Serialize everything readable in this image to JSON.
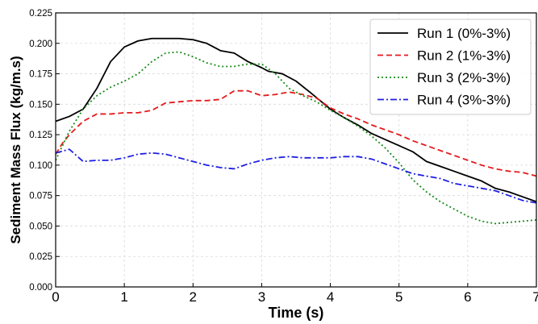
{
  "chart_data": {
    "type": "line",
    "title": "",
    "xlabel": "Time (s)",
    "ylabel": "Sediment Mass Flux (kg/m.s)",
    "xlim": [
      0,
      7
    ],
    "ylim": [
      0,
      0.225
    ],
    "xticks": [
      0,
      1,
      2,
      3,
      4,
      5,
      6,
      7
    ],
    "yticks": [
      0,
      0.025,
      0.05,
      0.075,
      0.1,
      0.125,
      0.15,
      0.175,
      0.2,
      0.225
    ],
    "xtick_labels": [
      "0",
      "1",
      "2",
      "3",
      "4",
      "5",
      "6",
      "7"
    ],
    "ytick_labels": [
      "0.000",
      "0.025",
      "0.050",
      "0.075",
      "0.100",
      "0.125",
      "0.150",
      "0.175",
      "0.200",
      "0.225"
    ],
    "grid": true,
    "legend_position": "top-right",
    "series": [
      {
        "name": "Run 1 (0%-3%)",
        "color": "#000000",
        "dash": "solid",
        "x": [
          0,
          0.2,
          0.4,
          0.6,
          0.8,
          1.0,
          1.2,
          1.4,
          1.6,
          1.8,
          2.0,
          2.2,
          2.4,
          2.6,
          2.8,
          3.0,
          3.1,
          3.2,
          3.3,
          3.5,
          3.7,
          4.0,
          4.2,
          4.4,
          4.6,
          4.8,
          5.0,
          5.2,
          5.4,
          5.6,
          5.8,
          6.0,
          6.2,
          6.4,
          6.6,
          6.8,
          7.0
        ],
        "y": [
          0.136,
          0.14,
          0.146,
          0.163,
          0.185,
          0.197,
          0.202,
          0.204,
          0.204,
          0.204,
          0.203,
          0.2,
          0.194,
          0.192,
          0.185,
          0.18,
          0.177,
          0.176,
          0.175,
          0.169,
          0.16,
          0.146,
          0.139,
          0.133,
          0.126,
          0.121,
          0.116,
          0.111,
          0.103,
          0.099,
          0.095,
          0.091,
          0.087,
          0.081,
          0.078,
          0.074,
          0.07
        ]
      },
      {
        "name": "Run 2 (1%-3%)",
        "color": "#e41a1c",
        "dash": "dashed",
        "x": [
          0,
          0.1,
          0.2,
          0.4,
          0.6,
          0.8,
          1.0,
          1.2,
          1.4,
          1.6,
          1.8,
          2.0,
          2.2,
          2.4,
          2.6,
          2.8,
          3.0,
          3.2,
          3.4,
          3.6,
          3.8,
          4.0,
          4.2,
          4.4,
          4.6,
          4.8,
          5.0,
          5.2,
          5.4,
          5.6,
          5.8,
          6.0,
          6.2,
          6.4,
          6.6,
          6.8,
          7.0
        ],
        "y": [
          0.109,
          0.118,
          0.125,
          0.136,
          0.142,
          0.142,
          0.143,
          0.143,
          0.145,
          0.151,
          0.152,
          0.153,
          0.153,
          0.154,
          0.161,
          0.161,
          0.157,
          0.158,
          0.16,
          0.158,
          0.155,
          0.147,
          0.142,
          0.138,
          0.133,
          0.129,
          0.125,
          0.12,
          0.116,
          0.112,
          0.108,
          0.104,
          0.1,
          0.097,
          0.095,
          0.094,
          0.091
        ]
      },
      {
        "name": "Run 3 (2%-3%)",
        "color": "#1a8a1a",
        "dash": "dotted",
        "x": [
          0,
          0.2,
          0.4,
          0.6,
          0.8,
          1.0,
          1.2,
          1.4,
          1.6,
          1.8,
          2.0,
          2.2,
          2.4,
          2.6,
          2.8,
          3.0,
          3.2,
          3.4,
          3.6,
          3.8,
          4.0,
          4.2,
          4.4,
          4.6,
          4.8,
          5.0,
          5.2,
          5.4,
          5.6,
          5.8,
          6.0,
          6.2,
          6.4,
          6.6,
          6.8,
          7.0
        ],
        "y": [
          0.104,
          0.128,
          0.146,
          0.157,
          0.164,
          0.169,
          0.175,
          0.185,
          0.192,
          0.193,
          0.189,
          0.184,
          0.181,
          0.181,
          0.183,
          0.183,
          0.175,
          0.163,
          0.157,
          0.152,
          0.145,
          0.139,
          0.132,
          0.124,
          0.114,
          0.102,
          0.088,
          0.078,
          0.07,
          0.064,
          0.058,
          0.054,
          0.052,
          0.053,
          0.054,
          0.055
        ]
      },
      {
        "name": "Run 4 (3%-3%)",
        "color": "#1f1fe0",
        "dash": "dashdot",
        "x": [
          0,
          0.2,
          0.4,
          0.6,
          0.8,
          1.0,
          1.2,
          1.4,
          1.6,
          1.8,
          2.0,
          2.2,
          2.4,
          2.6,
          2.8,
          3.0,
          3.2,
          3.4,
          3.6,
          3.8,
          4.0,
          4.2,
          4.4,
          4.6,
          4.8,
          5.0,
          5.2,
          5.4,
          5.6,
          5.8,
          6.0,
          6.2,
          6.4,
          6.6,
          6.8,
          7.0
        ],
        "y": [
          0.11,
          0.113,
          0.103,
          0.104,
          0.104,
          0.106,
          0.109,
          0.11,
          0.109,
          0.106,
          0.103,
          0.1,
          0.098,
          0.097,
          0.101,
          0.104,
          0.106,
          0.107,
          0.106,
          0.106,
          0.106,
          0.107,
          0.107,
          0.105,
          0.101,
          0.097,
          0.093,
          0.091,
          0.089,
          0.085,
          0.083,
          0.081,
          0.079,
          0.075,
          0.071,
          0.069
        ]
      }
    ]
  }
}
